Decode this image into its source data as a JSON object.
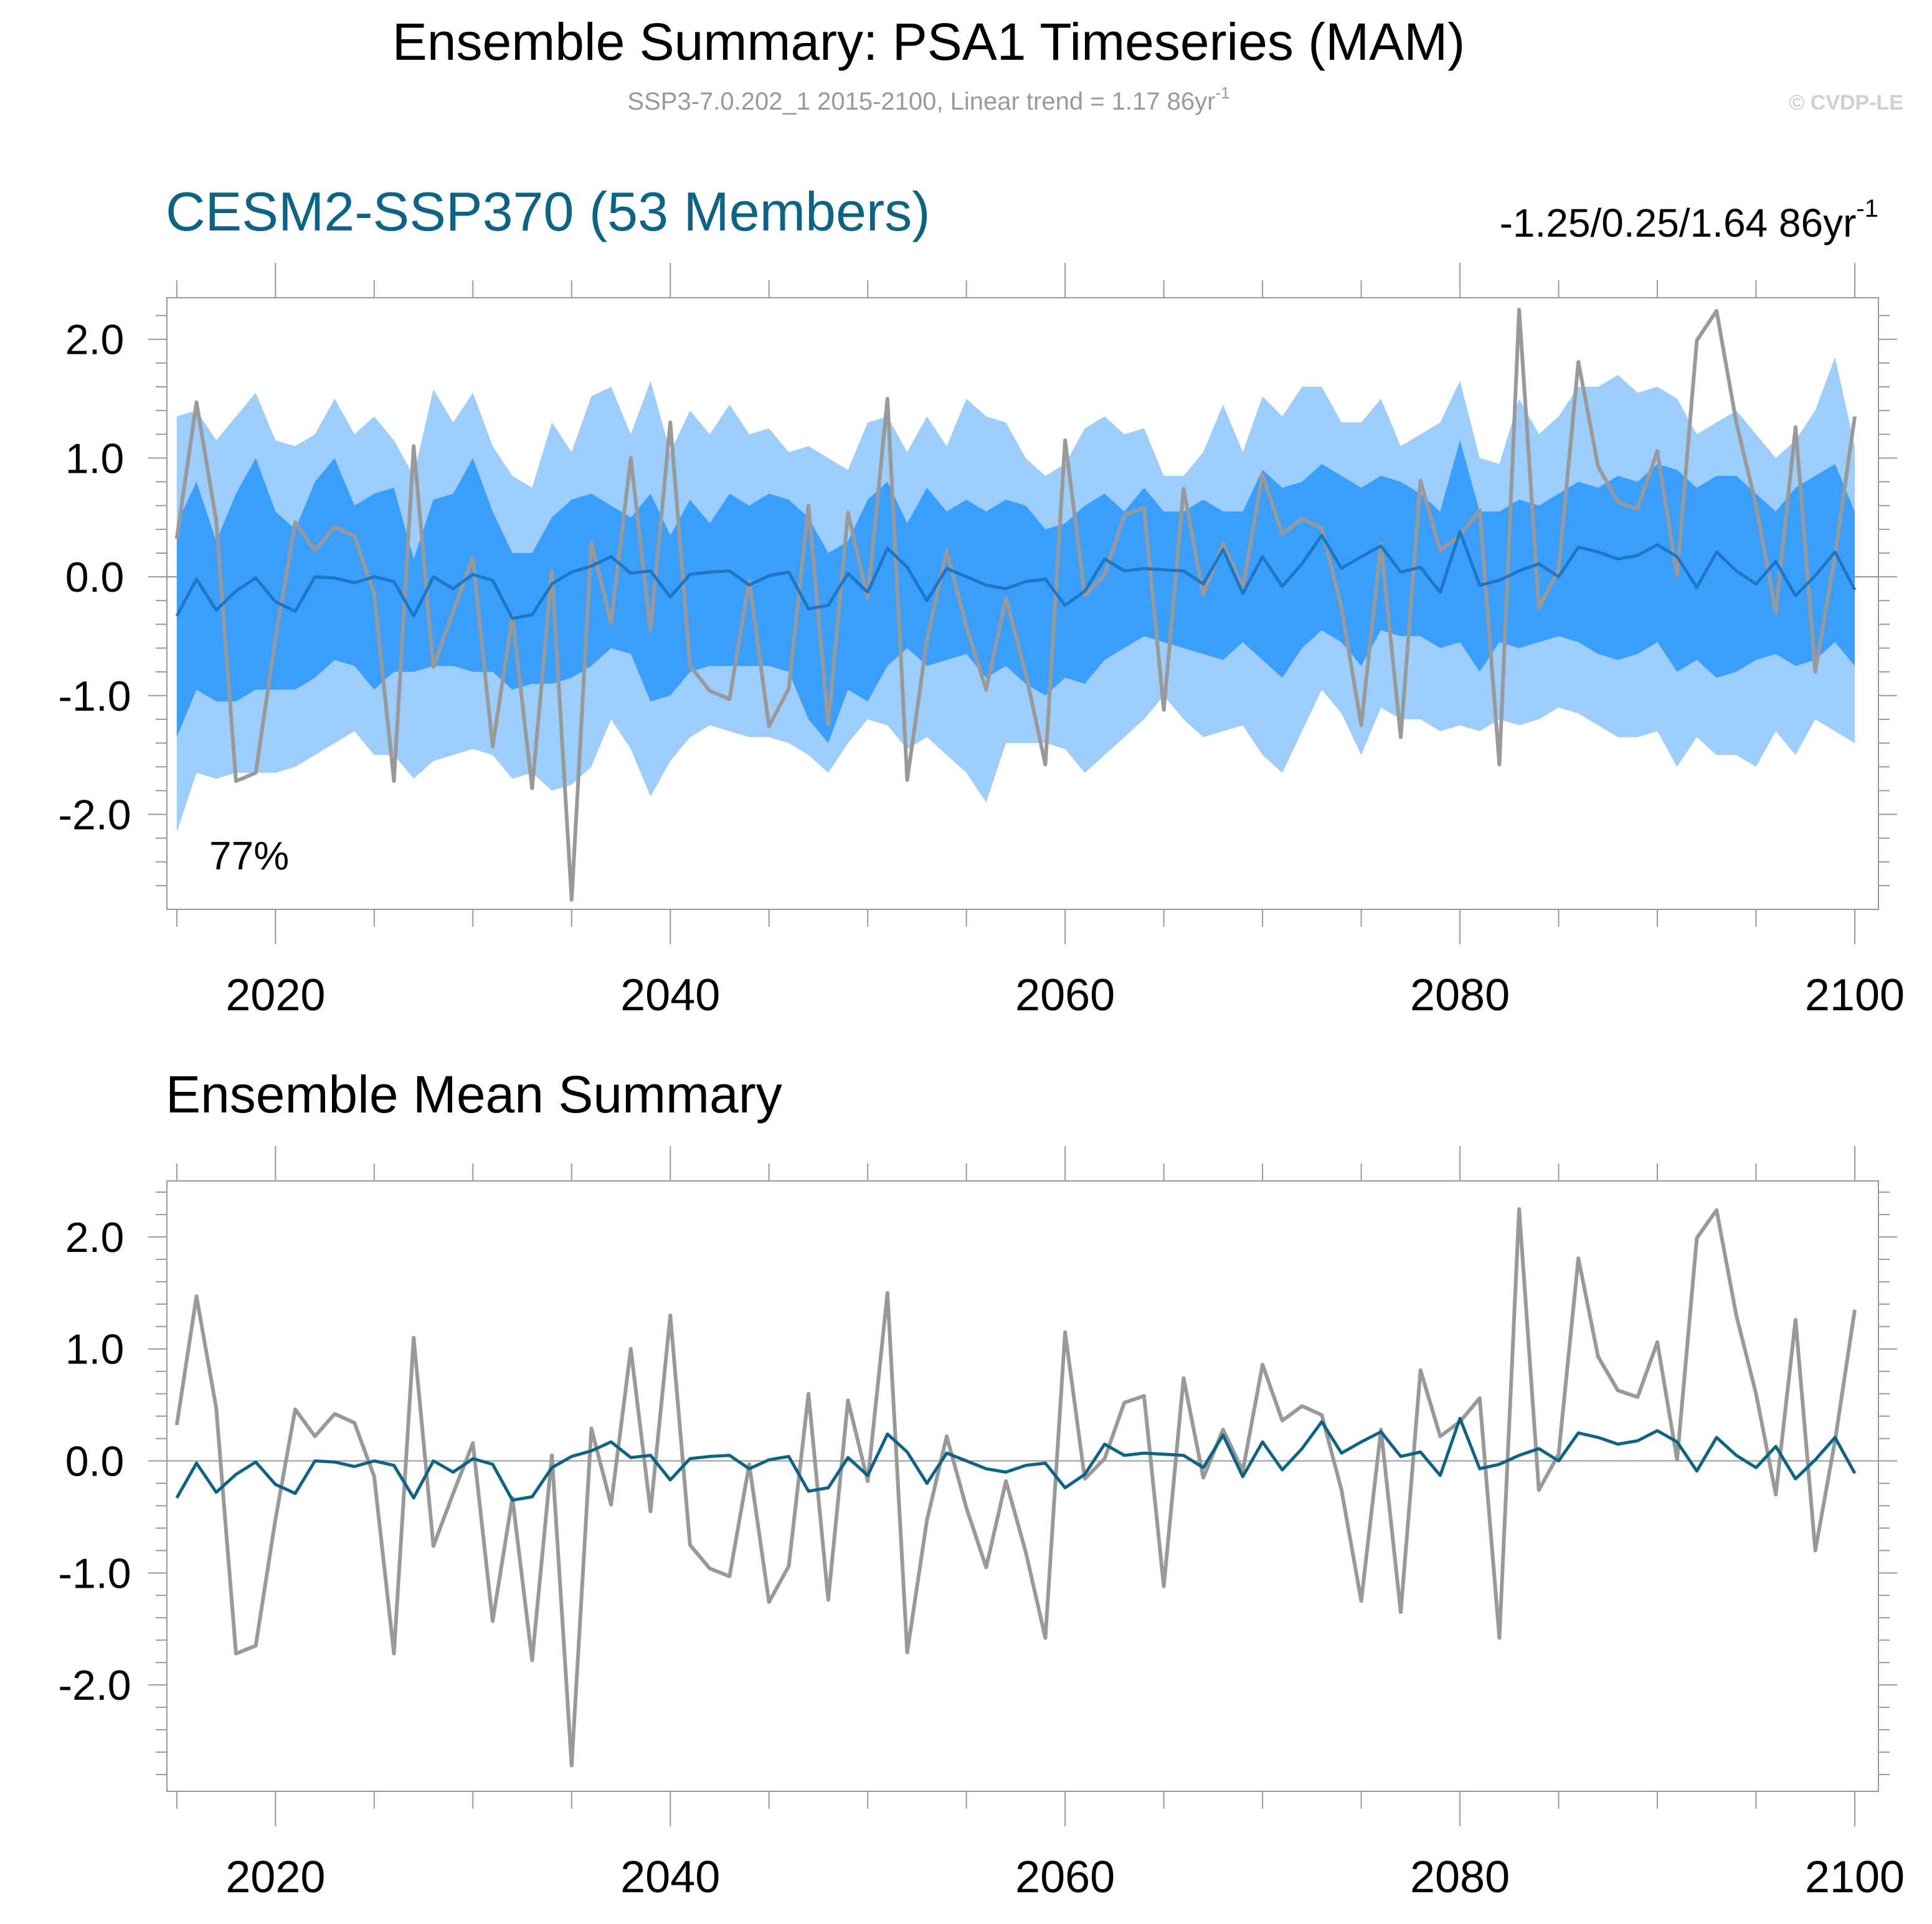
{
  "header": {
    "title": "Ensemble Summary: PSA1 Timeseries (MAM)",
    "subtitle_main": "SSP3-7.0.202_1 2015-2100, Linear trend = 1.17 86yr",
    "subtitle_sup": "-1",
    "watermark": "© CVDP-LE"
  },
  "colors": {
    "obs_line": "#999999",
    "ensemble_mean_top": "#1f77c4",
    "ensemble_mean_bottom": "#0b6385",
    "band_outer": "#9ccdfb",
    "band_inner": "#3a9ffc",
    "model_label": "#0b6385",
    "axis": "#999999",
    "text": "#000000"
  },
  "chart_data": [
    {
      "type": "line",
      "panel": "top",
      "title": "CESM2-SSP370 (53 Members)",
      "right_label": "-1.25/0.25/1.64 86yr",
      "right_label_sup": "-1",
      "annotation": "77%",
      "xlim": [
        2014.5,
        2101.2
      ],
      "ylim": [
        -2.8,
        2.35
      ],
      "xticks": [
        2020,
        2040,
        2060,
        2080,
        2100
      ],
      "xtick_labels": [
        "2020",
        "2040",
        "2060",
        "2080",
        "2100"
      ],
      "yticks": [
        -2.0,
        -1.0,
        0.0,
        1.0,
        2.0
      ],
      "ytick_labels": [
        "-2.0",
        "-1.0",
        "0.0",
        "1.0",
        "2.0"
      ],
      "x_start": 2015,
      "series": [
        {
          "name": "observations",
          "values": [
            0.32,
            1.47,
            0.47,
            -1.72,
            -1.65,
            -0.52,
            0.46,
            0.22,
            0.42,
            0.34,
            -0.14,
            -1.72,
            1.1,
            -0.76,
            -0.29,
            0.16,
            -1.43,
            -0.33,
            -1.78,
            0.05,
            -2.72,
            0.29,
            -0.39,
            1.0,
            -0.45,
            1.3,
            -0.75,
            -0.96,
            -1.03,
            -0.03,
            -1.26,
            -0.94,
            0.6,
            -1.24,
            0.54,
            -0.18,
            1.5,
            -1.71,
            -0.53,
            0.22,
            -0.42,
            -0.95,
            -0.18,
            -0.81,
            -1.58,
            1.15,
            -0.16,
            0.02,
            0.52,
            0.58,
            -1.12,
            0.74,
            -0.15,
            0.28,
            -0.09,
            0.86,
            0.36,
            0.49,
            0.41,
            -0.26,
            -1.25,
            0.28,
            -1.35,
            0.81,
            0.22,
            0.35,
            0.56,
            -1.58,
            2.25,
            -0.26,
            0.06,
            1.81,
            0.93,
            0.63,
            0.57,
            1.06,
            0.01,
            1.99,
            2.24,
            1.3,
            0.6,
            -0.3,
            1.26,
            -0.8,
            0.18,
            1.35
          ]
        },
        {
          "name": "ensemble mean",
          "values": [
            -0.33,
            -0.02,
            -0.28,
            -0.12,
            -0.01,
            -0.21,
            -0.29,
            0.0,
            -0.01,
            -0.05,
            0.0,
            -0.04,
            -0.33,
            0.0,
            -0.1,
            0.02,
            -0.03,
            -0.35,
            -0.32,
            -0.06,
            0.04,
            0.09,
            0.17,
            0.03,
            0.05,
            -0.17,
            0.02,
            0.04,
            0.05,
            -0.07,
            0.01,
            0.04,
            -0.27,
            -0.24,
            0.03,
            -0.13,
            0.24,
            0.08,
            -0.2,
            0.07,
            0.0,
            -0.07,
            -0.1,
            -0.04,
            -0.02,
            -0.24,
            -0.12,
            0.15,
            0.05,
            0.07,
            0.06,
            0.05,
            -0.06,
            0.23,
            -0.14,
            0.17,
            -0.08,
            0.11,
            0.35,
            0.07,
            0.17,
            0.26,
            0.04,
            0.08,
            -0.13,
            0.38,
            -0.07,
            -0.03,
            0.05,
            0.11,
            0.0,
            0.25,
            0.21,
            0.15,
            0.18,
            0.27,
            0.17,
            -0.09,
            0.21,
            0.05,
            -0.06,
            0.13,
            -0.16,
            0.01,
            0.21,
            -0.11
          ]
        },
        {
          "name": "ensemble 10-90% range",
          "upper": [
            1.35,
            1.4,
            1.15,
            1.35,
            1.55,
            1.15,
            1.1,
            1.2,
            1.5,
            1.2,
            1.35,
            1.15,
            0.85,
            1.58,
            1.3,
            1.55,
            1.1,
            0.85,
            0.75,
            1.3,
            1.05,
            1.52,
            1.6,
            1.2,
            1.65,
            1.05,
            1.4,
            1.2,
            1.45,
            1.2,
            1.25,
            1.05,
            1.1,
            1.0,
            0.9,
            1.3,
            1.35,
            1.05,
            1.35,
            1.1,
            1.5,
            1.35,
            1.3,
            1.0,
            0.85,
            0.95,
            1.25,
            1.35,
            1.2,
            1.25,
            0.85,
            0.85,
            1.05,
            1.45,
            1.05,
            1.52,
            1.35,
            1.6,
            1.6,
            1.3,
            1.3,
            1.5,
            1.1,
            1.2,
            1.3,
            1.65,
            1.0,
            0.95,
            1.5,
            1.2,
            1.35,
            1.6,
            1.6,
            1.7,
            1.55,
            1.6,
            1.5,
            1.2,
            1.3,
            1.4,
            1.2,
            1.0,
            1.15,
            1.4,
            1.85,
            1.1
          ]
        },
        {
          "name": "ensemble 10-90% range lower",
          "lower": [
            -2.15,
            -1.65,
            -1.7,
            -1.65,
            -1.65,
            -1.65,
            -1.6,
            -1.5,
            -1.4,
            -1.3,
            -1.5,
            -1.5,
            -1.7,
            -1.55,
            -1.5,
            -1.45,
            -1.5,
            -1.7,
            -1.65,
            -1.8,
            -1.75,
            -1.6,
            -1.2,
            -1.45,
            -1.85,
            -1.55,
            -1.35,
            -1.25,
            -1.3,
            -1.35,
            -1.35,
            -1.4,
            -1.5,
            -1.65,
            -1.4,
            -1.2,
            -1.25,
            -1.45,
            -1.35,
            -1.5,
            -1.65,
            -1.9,
            -1.4,
            -1.4,
            -1.4,
            -1.45,
            -1.65,
            -1.5,
            -1.35,
            -1.2,
            -1.0,
            -1.2,
            -1.35,
            -1.3,
            -1.25,
            -1.5,
            -1.65,
            -1.3,
            -0.95,
            -1.15,
            -1.5,
            -1.1,
            -1.2,
            -1.2,
            -1.3,
            -1.25,
            -1.3,
            -1.2,
            -1.25,
            -1.2,
            -1.1,
            -1.15,
            -1.25,
            -1.35,
            -1.35,
            -1.3,
            -1.6,
            -1.35,
            -1.5,
            -1.5,
            -1.6,
            -1.3,
            -1.5,
            -1.2,
            -1.3,
            -1.4
          ]
        },
        {
          "name": "ensemble 25-75% range",
          "upper": [
            0.45,
            0.8,
            0.3,
            0.7,
            1.0,
            0.55,
            0.4,
            0.8,
            1.0,
            0.6,
            0.7,
            0.75,
            0.15,
            0.65,
            0.7,
            1.0,
            0.55,
            0.2,
            0.2,
            0.5,
            0.65,
            0.7,
            0.6,
            0.5,
            0.7,
            0.35,
            0.65,
            0.45,
            0.7,
            0.6,
            0.7,
            0.65,
            0.5,
            0.2,
            0.3,
            0.65,
            0.8,
            0.45,
            0.75,
            0.55,
            0.65,
            0.55,
            0.65,
            0.6,
            0.4,
            0.45,
            0.6,
            0.7,
            0.55,
            0.75,
            0.55,
            0.55,
            0.65,
            0.55,
            0.55,
            0.9,
            0.75,
            0.8,
            0.95,
            0.85,
            0.75,
            0.85,
            0.8,
            0.7,
            0.55,
            1.15,
            0.55,
            0.55,
            0.65,
            0.6,
            0.7,
            0.8,
            0.75,
            0.85,
            0.8,
            0.95,
            0.9,
            0.75,
            0.85,
            0.85,
            0.7,
            0.55,
            0.75,
            0.85,
            0.95,
            0.55
          ]
        },
        {
          "name": "ensemble 25-75% range lower",
          "lower": [
            -1.35,
            -0.95,
            -1.05,
            -1.05,
            -0.95,
            -0.95,
            -0.95,
            -0.85,
            -0.7,
            -0.75,
            -0.95,
            -0.8,
            -0.8,
            -0.75,
            -0.75,
            -0.8,
            -0.8,
            -0.95,
            -0.9,
            -0.9,
            -0.85,
            -0.75,
            -0.6,
            -0.65,
            -1.05,
            -1.0,
            -0.8,
            -0.75,
            -0.75,
            -0.75,
            -0.75,
            -0.8,
            -1.2,
            -1.4,
            -0.95,
            -1.05,
            -0.75,
            -0.6,
            -0.75,
            -0.7,
            -0.65,
            -0.85,
            -0.75,
            -0.9,
            -1.0,
            -0.85,
            -0.9,
            -0.7,
            -0.6,
            -0.5,
            -0.55,
            -0.6,
            -0.65,
            -0.7,
            -0.55,
            -0.7,
            -0.85,
            -0.6,
            -0.45,
            -0.55,
            -0.75,
            -0.45,
            -0.5,
            -0.5,
            -0.6,
            -0.55,
            -0.8,
            -0.55,
            -0.6,
            -0.55,
            -0.5,
            -0.55,
            -0.65,
            -0.7,
            -0.65,
            -0.55,
            -0.8,
            -0.7,
            -0.85,
            -0.8,
            -0.7,
            -0.65,
            -0.75,
            -0.7,
            -0.55,
            -0.75
          ]
        }
      ]
    },
    {
      "type": "line",
      "panel": "bottom",
      "title": "Ensemble Mean Summary",
      "xlim": [
        2014.5,
        2101.2
      ],
      "ylim": [
        -2.95,
        2.5
      ],
      "xticks": [
        2020,
        2040,
        2060,
        2080,
        2100
      ],
      "xtick_labels": [
        "2020",
        "2040",
        "2060",
        "2080",
        "2100"
      ],
      "yticks": [
        -2.0,
        -1.0,
        0.0,
        1.0,
        2.0
      ],
      "ytick_labels": [
        "-2.0",
        "-1.0",
        "0.0",
        "1.0",
        "2.0"
      ],
      "x_start": 2015,
      "series": [
        {
          "name": "observations",
          "values": [
            0.32,
            1.47,
            0.47,
            -1.72,
            -1.65,
            -0.52,
            0.46,
            0.22,
            0.42,
            0.34,
            -0.14,
            -1.72,
            1.1,
            -0.76,
            -0.29,
            0.16,
            -1.43,
            -0.33,
            -1.78,
            0.05,
            -2.72,
            0.29,
            -0.39,
            1.0,
            -0.45,
            1.3,
            -0.75,
            -0.96,
            -1.03,
            -0.03,
            -1.26,
            -0.94,
            0.6,
            -1.24,
            0.54,
            -0.18,
            1.5,
            -1.71,
            -0.53,
            0.22,
            -0.42,
            -0.95,
            -0.18,
            -0.81,
            -1.58,
            1.15,
            -0.16,
            0.02,
            0.52,
            0.58,
            -1.12,
            0.74,
            -0.15,
            0.28,
            -0.09,
            0.86,
            0.36,
            0.49,
            0.41,
            -0.26,
            -1.25,
            0.28,
            -1.35,
            0.81,
            0.22,
            0.35,
            0.56,
            -1.58,
            2.25,
            -0.26,
            0.06,
            1.81,
            0.93,
            0.63,
            0.57,
            1.06,
            0.01,
            1.99,
            2.24,
            1.3,
            0.6,
            -0.3,
            1.26,
            -0.8,
            0.18,
            1.35
          ]
        },
        {
          "name": "ensemble mean",
          "values": [
            -0.33,
            -0.02,
            -0.28,
            -0.12,
            -0.01,
            -0.21,
            -0.29,
            0.0,
            -0.01,
            -0.05,
            0.0,
            -0.04,
            -0.33,
            0.0,
            -0.1,
            0.02,
            -0.03,
            -0.35,
            -0.32,
            -0.06,
            0.04,
            0.09,
            0.17,
            0.03,
            0.05,
            -0.17,
            0.02,
            0.04,
            0.05,
            -0.07,
            0.01,
            0.04,
            -0.27,
            -0.24,
            0.03,
            -0.13,
            0.24,
            0.08,
            -0.2,
            0.07,
            0.0,
            -0.07,
            -0.1,
            -0.04,
            -0.02,
            -0.24,
            -0.12,
            0.15,
            0.05,
            0.07,
            0.06,
            0.05,
            -0.06,
            0.23,
            -0.14,
            0.17,
            -0.08,
            0.11,
            0.35,
            0.07,
            0.17,
            0.26,
            0.04,
            0.08,
            -0.13,
            0.38,
            -0.07,
            -0.03,
            0.05,
            0.11,
            0.0,
            0.25,
            0.21,
            0.15,
            0.18,
            0.27,
            0.17,
            -0.09,
            0.21,
            0.05,
            -0.06,
            0.13,
            -0.16,
            0.01,
            0.21,
            -0.11
          ]
        }
      ]
    }
  ]
}
